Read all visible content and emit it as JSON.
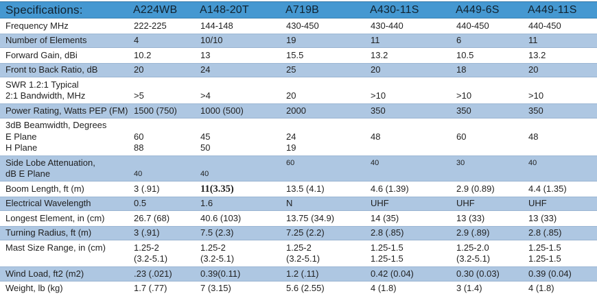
{
  "colors": {
    "header_bg": "#4598d1",
    "header_text": "#10222f",
    "stripe_bg": "#aec7e2",
    "text": "#1f1f1f"
  },
  "table": {
    "title": "Specifications:",
    "columns": [
      "A224WB",
      "A148-20T",
      "A719B",
      "A430-11S",
      "A449-6S",
      "A449-11S"
    ],
    "rows": [
      {
        "id": "frequency",
        "label": [
          "Frequency MHz"
        ],
        "values": [
          [
            "222-225"
          ],
          [
            "144-148"
          ],
          [
            "430-450"
          ],
          [
            "430-440"
          ],
          [
            "440-450"
          ],
          [
            "440-450"
          ]
        ]
      },
      {
        "id": "number-of-elements",
        "label": [
          "Number of Elements"
        ],
        "values": [
          [
            "4"
          ],
          [
            "10/10"
          ],
          [
            "19"
          ],
          [
            "11"
          ],
          [
            "6"
          ],
          [
            "11"
          ]
        ]
      },
      {
        "id": "forward-gain",
        "label": [
          "Forward Gain, dBi"
        ],
        "values": [
          [
            "10.2"
          ],
          [
            "13"
          ],
          [
            "15.5"
          ],
          [
            "13.2"
          ],
          [
            "10.5"
          ],
          [
            "13.2"
          ]
        ]
      },
      {
        "id": "front-to-back-ratio",
        "label": [
          "Front to Back Ratio, dB"
        ],
        "values": [
          [
            "20"
          ],
          [
            "24"
          ],
          [
            "25"
          ],
          [
            "20"
          ],
          [
            "18"
          ],
          [
            "20"
          ]
        ]
      },
      {
        "id": "swr-bandwidth",
        "label": [
          "SWR 1.2:1 Typical",
          "2:1 Bandwidth, MHz"
        ],
        "values": [
          [
            "",
            ">5"
          ],
          [
            "",
            ">4"
          ],
          [
            "",
            "20"
          ],
          [
            "",
            ">10"
          ],
          [
            "",
            ">10"
          ],
          [
            "",
            ">10"
          ]
        ]
      },
      {
        "id": "power-rating",
        "label": [
          "Power Rating, Watts PEP (FM)"
        ],
        "values": [
          [
            "1500 (750)"
          ],
          [
            "1000 (500)"
          ],
          [
            "2000"
          ],
          [
            "350"
          ],
          [
            "350"
          ],
          [
            "350"
          ]
        ]
      },
      {
        "id": "beamwidth",
        "label": [
          "3dB Beamwidth, Degrees",
          "E Plane",
          "H Plane"
        ],
        "values": [
          [
            "",
            "60",
            "88"
          ],
          [
            "",
            "45",
            "50"
          ],
          [
            "",
            "24",
            "19"
          ],
          [
            "",
            "48",
            ""
          ],
          [
            "",
            "60",
            ""
          ],
          [
            "",
            "48",
            ""
          ]
        ]
      },
      {
        "id": "side-lobe-attenuation",
        "label": [
          "Side Lobe Attenuation,",
          "dB E Plane"
        ],
        "small": true,
        "values": [
          [
            "",
            "40"
          ],
          [
            "",
            "40"
          ],
          [
            "60",
            ""
          ],
          [
            "40",
            ""
          ],
          [
            "30",
            ""
          ],
          [
            "40",
            ""
          ]
        ]
      },
      {
        "id": "boom-length",
        "label": [
          "Boom Length, ft (m)"
        ],
        "emphasis_col": 1,
        "values": [
          [
            "3 (.91)"
          ],
          [
            "11(3.35)"
          ],
          [
            "13.5 (4.1)"
          ],
          [
            "4.6 (1.39)"
          ],
          [
            "2.9 (0.89)"
          ],
          [
            "4.4 (1.35)"
          ]
        ]
      },
      {
        "id": "electrical-wavelength",
        "label": [
          "Electrical Wavelength"
        ],
        "values": [
          [
            "0.5"
          ],
          [
            "1.6"
          ],
          [
            "N"
          ],
          [
            "UHF"
          ],
          [
            "UHF"
          ],
          [
            "UHF"
          ]
        ]
      },
      {
        "id": "longest-element",
        "label": [
          "Longest Element, in (cm)"
        ],
        "values": [
          [
            "26.7 (68)"
          ],
          [
            "40.6 (103)"
          ],
          [
            "13.75 (34.9)"
          ],
          [
            "14 (35)"
          ],
          [
            "13 (33)"
          ],
          [
            "13 (33)"
          ]
        ]
      },
      {
        "id": "turning-radius",
        "label": [
          "Turning Radius, ft (m)"
        ],
        "values": [
          [
            "3 (.91)"
          ],
          [
            "7.5 (2.3)"
          ],
          [
            "7.25 (2.2)"
          ],
          [
            "2.8 (.85)"
          ],
          [
            "2.9 (.89)"
          ],
          [
            "2.8 (.85)"
          ]
        ]
      },
      {
        "id": "mast-size-range",
        "label": [
          "Mast Size Range, in (cm)"
        ],
        "values": [
          [
            "1.25-2",
            "(3.2-5.1)"
          ],
          [
            "1.25-2",
            "(3.2-5.1)"
          ],
          [
            "1.25-2",
            "(3.2-5.1)"
          ],
          [
            "1.25-1.5",
            "1.25-1.5"
          ],
          [
            "1.25-2.0",
            "(3.2-5.1)"
          ],
          [
            "1.25-1.5",
            "1.25-1.5"
          ]
        ]
      },
      {
        "id": "wind-load",
        "label": [
          "Wind Load, ft2 (m2)"
        ],
        "values": [
          [
            ".23 (.021)"
          ],
          [
            "0.39(0.11)"
          ],
          [
            "1.2 (.11)"
          ],
          [
            "0.42 (0.04)"
          ],
          [
            "0.30 (0.03)"
          ],
          [
            "0.39 (0.04)"
          ]
        ]
      },
      {
        "id": "weight",
        "label": [
          "Weight, lb (kg)"
        ],
        "values": [
          [
            "1.7 (.77)"
          ],
          [
            "7 (3.15)"
          ],
          [
            "5.6 (2.55)"
          ],
          [
            "4 (1.8)"
          ],
          [
            "3 (1.4)"
          ],
          [
            "4 (1.8)"
          ]
        ]
      }
    ]
  }
}
